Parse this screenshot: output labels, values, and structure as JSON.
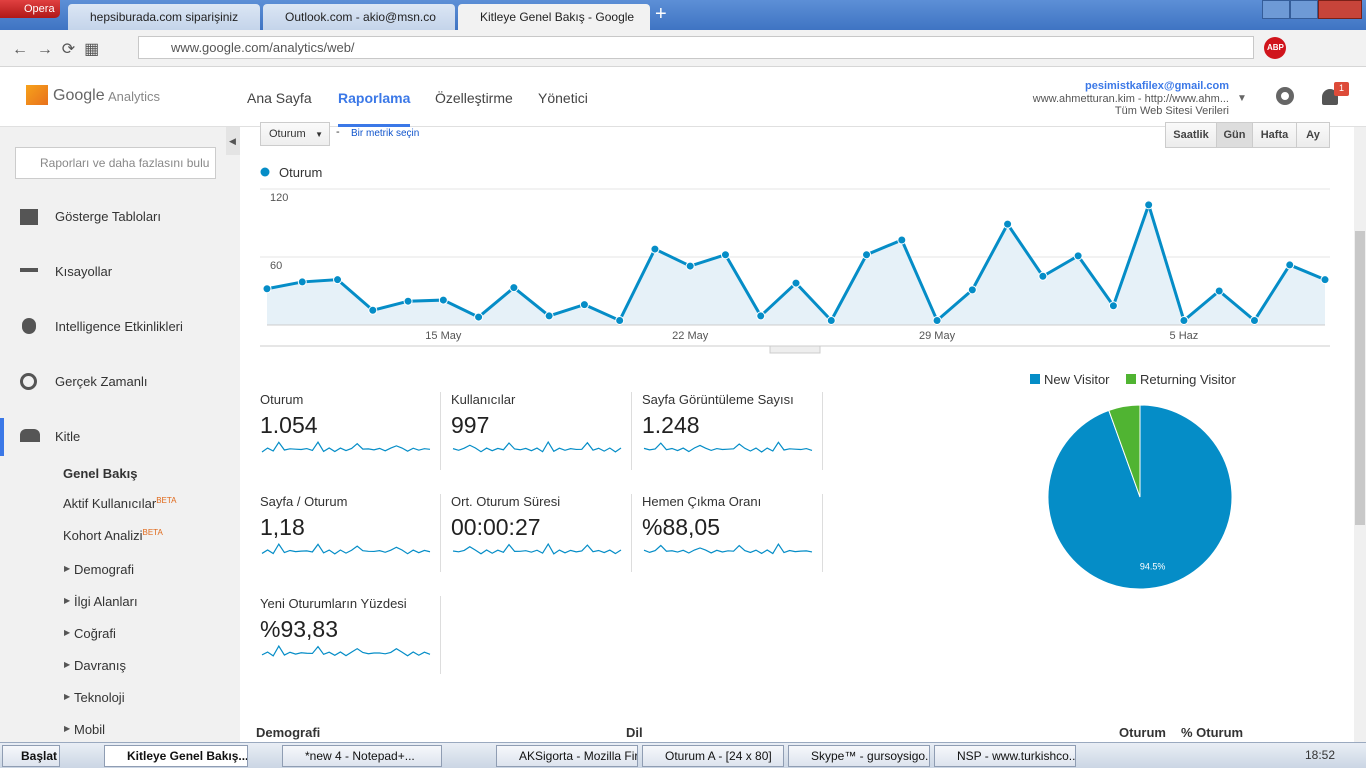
{
  "browser": {
    "app": "Opera",
    "tabs": [
      "hepsiburada.com siparişiniz",
      "Outlook.com - akio@msn.co",
      "Kitleye Genel Bakış - Google"
    ],
    "url": "www.google.com/analytics/web/",
    "adblock": "ABP"
  },
  "header": {
    "logo_brand": "Google",
    "logo_product": "Analytics",
    "nav": [
      "Ana Sayfa",
      "Raporlama",
      "Özelleştirme",
      "Yönetici"
    ],
    "account_email": "pesimistkafilex@gmail.com",
    "account_property": "www.ahmetturan.kim - http://www.ahm...",
    "account_view": "Tüm Web Sitesi Verileri",
    "notification_count": 1
  },
  "sidebar": {
    "search_placeholder": "Raporları ve daha fazlasını bulu",
    "sections": [
      "Gösterge Tabloları",
      "Kısayollar",
      "Intelligence Etkinlikleri",
      "Gerçek Zamanlı",
      "Kitle"
    ],
    "subitems": [
      {
        "label": "Genel Bakış"
      },
      {
        "label": "Aktif Kullanıcılar",
        "badge": "BETA"
      },
      {
        "label": "Kohort Analizi",
        "badge": "BETA"
      }
    ],
    "groups": [
      "Demografi",
      "İlgi Alanları",
      "Coğrafi",
      "Davranış",
      "Teknoloji",
      "Mobil"
    ]
  },
  "controls": {
    "metric_select": "Oturum",
    "separator": "-",
    "add_metric": "Bir metrik seçin",
    "granularity": [
      "Saatlik",
      "Gün",
      "Hafta",
      "Ay"
    ]
  },
  "chart_data": [
    {
      "type": "line",
      "series": [
        {
          "name": "Oturum",
          "color": "#058dc7",
          "values": [
            32,
            38,
            40,
            13,
            21,
            22,
            7,
            33,
            8,
            18,
            4,
            67,
            52,
            62,
            8,
            37,
            4,
            62,
            75,
            4,
            31,
            89,
            43,
            61,
            17,
            106,
            4,
            30,
            4,
            53,
            40
          ]
        }
      ],
      "categories": [
        null,
        null,
        null,
        null,
        null,
        "15 May",
        null,
        null,
        null,
        null,
        null,
        null,
        "22 May",
        null,
        null,
        null,
        null,
        null,
        null,
        "29 May",
        null,
        null,
        null,
        null,
        null,
        null,
        "5 Haz",
        null,
        null,
        null,
        null
      ],
      "ylim": [
        0,
        120
      ],
      "yticks": [
        60,
        120
      ],
      "grid": true
    },
    {
      "type": "pie",
      "categories": [
        "New Visitor",
        "Returning Visitor"
      ],
      "values": [
        94.5,
        5.5
      ],
      "value_labels": [
        "94.5%",
        null
      ],
      "colors": [
        "#058dc7",
        "#50b432"
      ]
    }
  ],
  "metrics": [
    {
      "label": "Oturum",
      "value": "1.054"
    },
    {
      "label": "Kullanıcılar",
      "value": "997"
    },
    {
      "label": "Sayfa Görüntüleme Sayısı",
      "value": "1.248"
    },
    {
      "label": "Sayfa / Oturum",
      "value": "1,18"
    },
    {
      "label": "Ort. Oturum Süresi",
      "value": "00:00:27"
    },
    {
      "label": "Hemen Çıkma Oranı",
      "value": "%88,05"
    },
    {
      "label": "Yeni Oturumların Yüzdesi",
      "value": "%93,83"
    }
  ],
  "table": {
    "left_header": "Demografi",
    "mid_header": "Dil",
    "columns": [
      "Oturum",
      "% Oturum"
    ]
  },
  "taskbar": {
    "start": "Başlat",
    "items": [
      "Kitleye Genel Bakış...",
      "*new  4 - Notepad+...",
      "AKSigorta - Mozilla Fir...",
      "Oturum A - [24 x 80]",
      "Skype™ - gursoysigo...",
      "NSP - www.turkishco..."
    ],
    "clock": "18:52"
  }
}
